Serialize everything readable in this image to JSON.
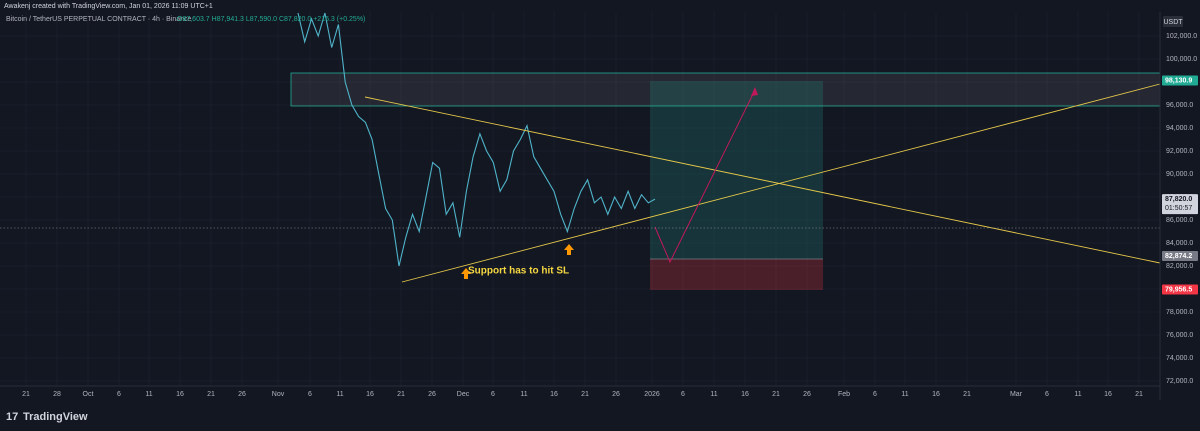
{
  "header": {
    "credit": "Awakenj created with TradingView.com, Jan 01, 2026 11:09 UTC+1",
    "symbol": "Bitcoin / TetherUS PERPETUAL CONTRACT · 4h · Binance",
    "ohlc": "O87,603.7 H87,941.3 L87,590.0 C87,820.0 +216.3 (+0.25%)"
  },
  "currency": "USDT",
  "price_ticks": [
    {
      "value": 102000,
      "label": "102,000.0"
    },
    {
      "value": 100000,
      "label": "100,000.0"
    },
    {
      "value": 98000,
      "label": "98,000.0"
    },
    {
      "value": 96000,
      "label": "96,000.0"
    },
    {
      "value": 94000,
      "label": "94,000.0"
    },
    {
      "value": 92000,
      "label": "92,000.0"
    },
    {
      "value": 90000,
      "label": "90,000.0"
    },
    {
      "value": 88000,
      "label": "88,000.0"
    },
    {
      "value": 86000,
      "label": "86,000.0"
    },
    {
      "value": 84000,
      "label": "84,000.0"
    },
    {
      "value": 82000,
      "label": "82,000.0"
    },
    {
      "value": 80000,
      "label": "80,000.0"
    },
    {
      "value": 78000,
      "label": "78,000.0"
    },
    {
      "value": 76000,
      "label": "76,000.0"
    },
    {
      "value": 74000,
      "label": "74,000.0"
    },
    {
      "value": 72000,
      "label": "72,000.0"
    }
  ],
  "price_range": [
    72000,
    102000
  ],
  "price_tags": [
    {
      "value": 98130.9,
      "label": "98,130.9",
      "color": "#22ab94"
    },
    {
      "value": 87820,
      "label": "87,820.0",
      "color": "#d1d4dc",
      "timer": "01:50:57"
    },
    {
      "value": 82874.2,
      "label": "82,874.2",
      "color": "#787b86"
    },
    {
      "value": 79956.5,
      "label": "79,956.5",
      "color": "#f23645"
    }
  ],
  "time_labels": [
    "21",
    "28",
    "Oct",
    "6",
    "11",
    "16",
    "21",
    "26",
    "Nov",
    "6",
    "11",
    "16",
    "21",
    "26",
    "Dec",
    "6",
    "11",
    "16",
    "21",
    "26",
    "2026",
    "6",
    "11",
    "16",
    "21",
    "26",
    "Feb",
    "6",
    "11",
    "16",
    "21",
    "Mar",
    "6",
    "11",
    "16",
    "21"
  ],
  "price_path": [
    104000,
    101500,
    103500,
    102000,
    104000,
    101000,
    103000,
    98000,
    96000,
    95000,
    94500,
    93000,
    90000,
    87000,
    86000,
    82000,
    84500,
    86500,
    85000,
    88000,
    91000,
    90500,
    86500,
    87500,
    84500,
    88500,
    91500,
    93500,
    92000,
    91000,
    88500,
    89500,
    92000,
    93000,
    94200,
    91500,
    90500,
    89500,
    88500,
    86500,
    85000,
    87000,
    88500,
    89500,
    87500,
    88000,
    86500,
    88000,
    87000,
    88500,
    87000,
    88200,
    87500,
    87820
  ],
  "annotation": "Support has to hit SL",
  "logo": "TradingView"
}
